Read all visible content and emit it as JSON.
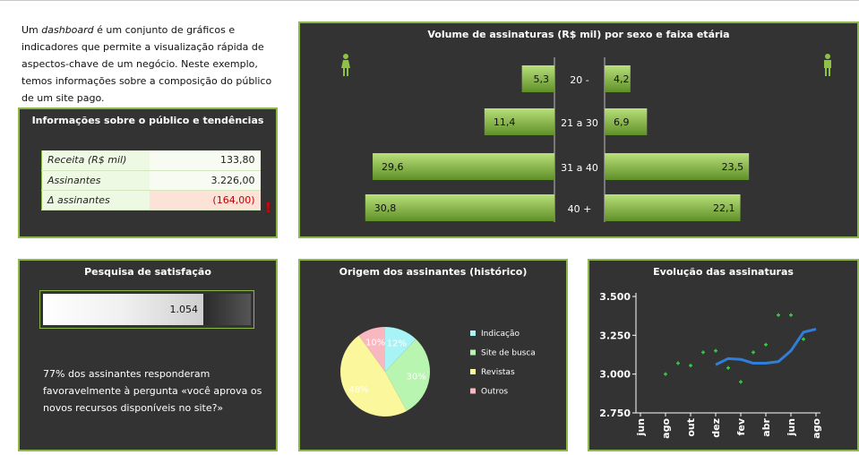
{
  "intro": {
    "part1": "Um ",
    "emph": "dashboard",
    "part2": " é um conjunto de gráficos e indicadores que permite a visualização rápida de aspectos-chave de um negócio. Neste exemplo, temos informações sobre a composição do público de um site pago."
  },
  "info": {
    "title": "Informações sobre o público e tendências",
    "rows": [
      {
        "label": "Receita (R$ mil)",
        "value": "133,80"
      },
      {
        "label": "Assinantes",
        "value": "3.226,00"
      },
      {
        "label": "Δ assinantes",
        "value": "(164,00)"
      }
    ],
    "warning": "!"
  },
  "satisfaction": {
    "title": "Pesquisa de satisfação",
    "value_label": "1.054",
    "fill_fraction": 0.77,
    "text": "77% dos assinantes responderam favoravelmente à pergunta «você aprova os novos recursos disponíveis no site?»"
  },
  "colors": {
    "panel_bg": "#333333",
    "border": "#8cb84a",
    "bar_green": "#8fc145",
    "line_blue": "#2f7fd8",
    "marker_green": "#33d040",
    "pie_cyan": "#a8f3f5",
    "pie_green": "#b8f5b0",
    "pie_yellow": "#fbf79c",
    "pie_pink": "#f9b8c0"
  },
  "icons": {
    "female": "female-figure-icon",
    "male": "male-figure-icon"
  },
  "chart_data": [
    {
      "type": "bar",
      "title": "Volume de assinaturas (R$ mil) por sexo e faixa etária",
      "categories": [
        "20 -",
        "21 a 30",
        "31 a 40",
        "40 +"
      ],
      "series": [
        {
          "values": [
            5.3,
            11.4,
            29.6,
            30.8
          ],
          "labels": [
            "5,3",
            "11,4",
            "29,6",
            "30,8"
          ]
        },
        {
          "values": [
            4.2,
            6.9,
            23.5,
            22.1
          ],
          "labels": [
            "4,2",
            "6,9",
            "23,5",
            "22,1"
          ]
        }
      ],
      "xlim": [
        0,
        31.5
      ]
    },
    {
      "type": "pie",
      "title": "Origem dos assinantes (histórico)",
      "categories": [
        "Indicação",
        "Site de busca",
        "Revistas",
        "Outros"
      ],
      "values": [
        12,
        30,
        48,
        10
      ],
      "labels": [
        "12%",
        "30%",
        "48%",
        "10%"
      ]
    },
    {
      "type": "line",
      "title": "Evolução das assinaturas",
      "x": [
        "jun",
        "ago",
        "out",
        "dez",
        "fev",
        "abr",
        "jun",
        "ago"
      ],
      "y_ticks": [
        "3.500",
        "3.250",
        "3.000",
        "2.750"
      ],
      "ylim": [
        2750,
        3500
      ],
      "line": [
        [
          3,
          3060
        ],
        [
          3.5,
          3100
        ],
        [
          4,
          3095
        ],
        [
          4.5,
          3070
        ],
        [
          5,
          3070
        ],
        [
          5.5,
          3080
        ],
        [
          6,
          3150
        ],
        [
          6.5,
          3270
        ],
        [
          7,
          3290
        ]
      ],
      "markers": [
        [
          1,
          3000
        ],
        [
          1.5,
          3070
        ],
        [
          2,
          3055
        ],
        [
          2.5,
          3140
        ],
        [
          3,
          3150
        ],
        [
          3.5,
          3040
        ],
        [
          4,
          2950
        ],
        [
          4.5,
          3140
        ],
        [
          5,
          3190
        ],
        [
          5.5,
          3380
        ],
        [
          6,
          3380
        ],
        [
          6.5,
          3225
        ]
      ]
    }
  ]
}
